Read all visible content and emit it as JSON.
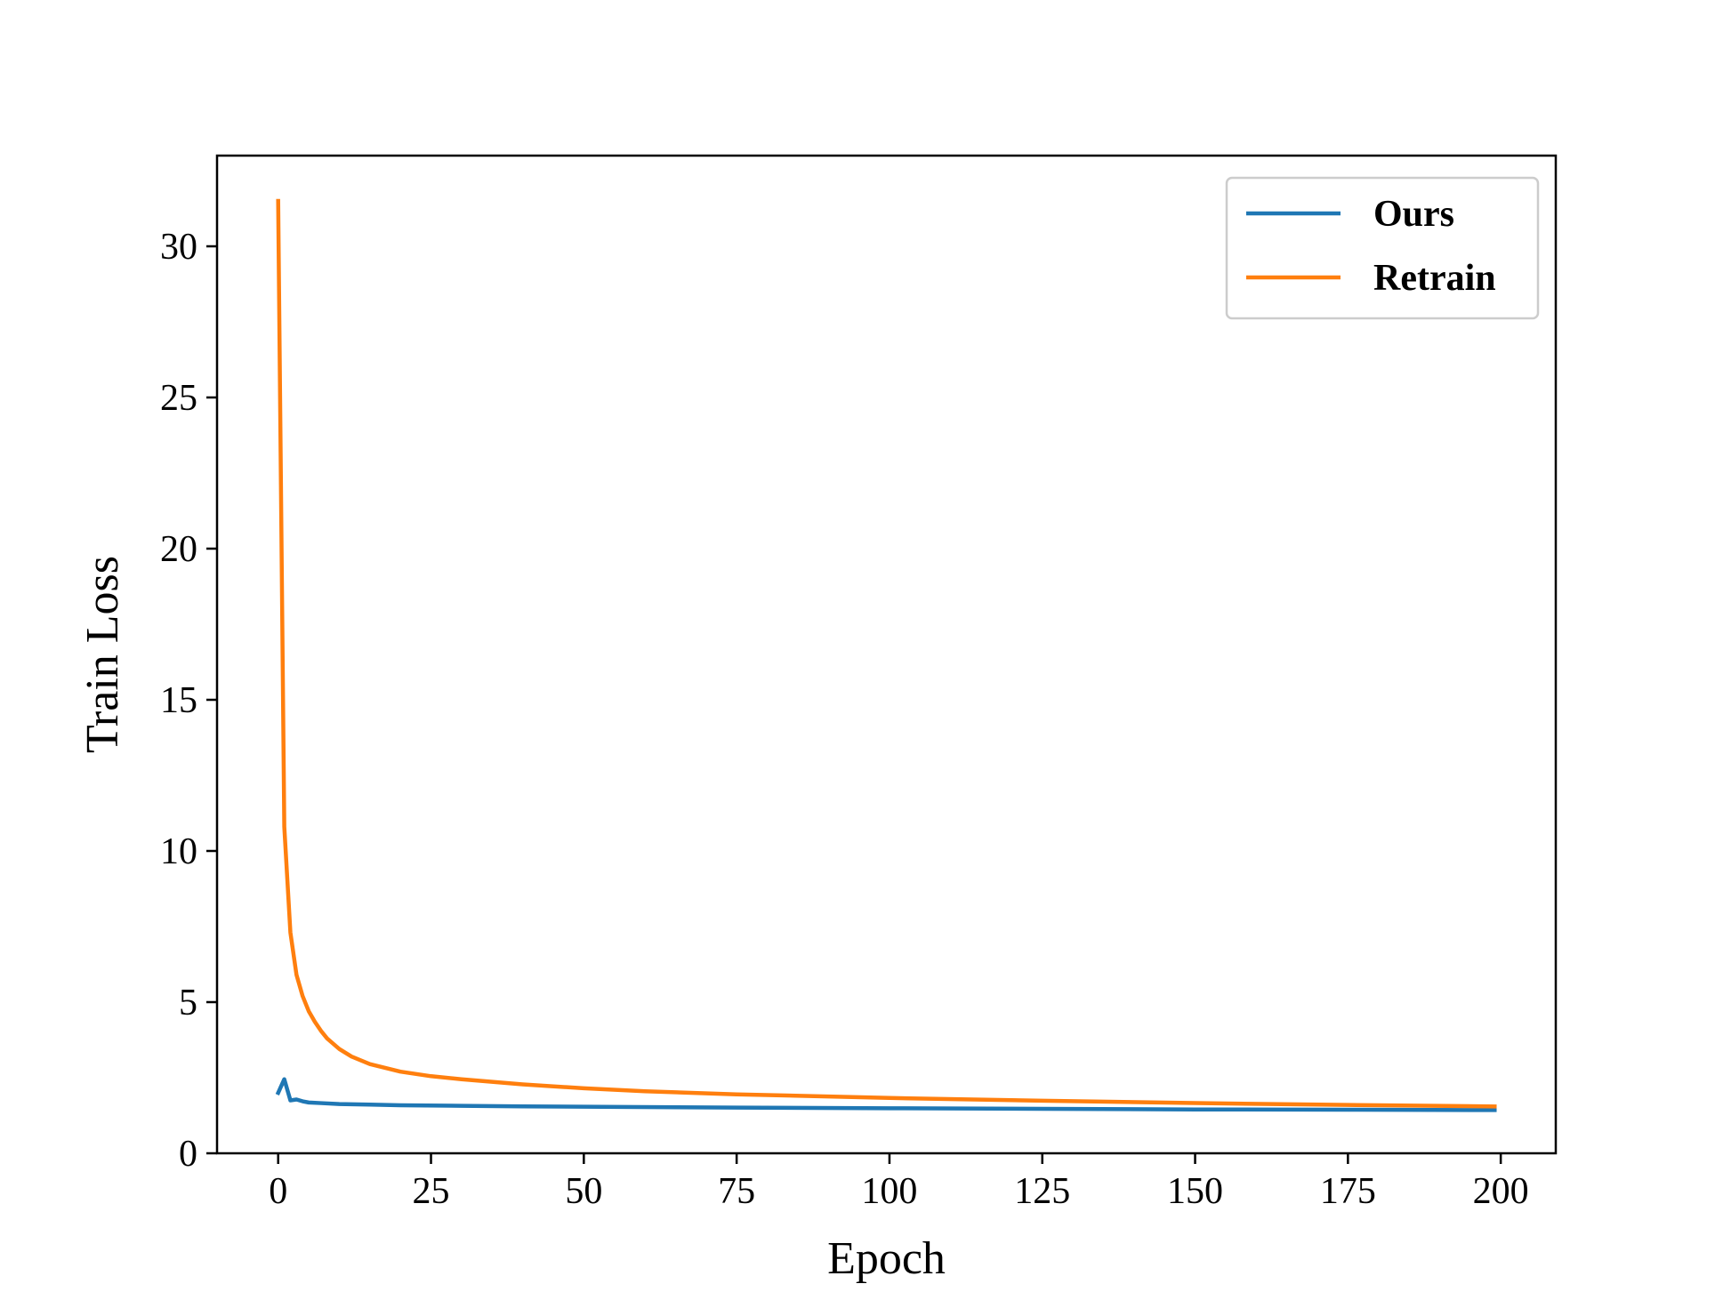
{
  "chart_data": {
    "type": "line",
    "title": "",
    "xlabel": "Epoch",
    "ylabel": "Train Loss",
    "xlim": [
      -10,
      209
    ],
    "ylim": [
      0,
      33
    ],
    "xticks": [
      0,
      25,
      50,
      75,
      100,
      125,
      150,
      175,
      200
    ],
    "yticks": [
      0,
      5,
      10,
      15,
      20,
      25,
      30
    ],
    "grid": false,
    "legend_position": "top-right",
    "series": [
      {
        "name": "Ours",
        "color": "#1f77b4",
        "x": [
          0,
          1,
          2,
          3,
          4,
          5,
          7,
          10,
          15,
          20,
          30,
          40,
          50,
          75,
          100,
          125,
          150,
          175,
          199
        ],
        "y": [
          2.0,
          2.45,
          1.75,
          1.78,
          1.72,
          1.68,
          1.66,
          1.63,
          1.61,
          1.59,
          1.57,
          1.55,
          1.54,
          1.51,
          1.49,
          1.47,
          1.45,
          1.44,
          1.43
        ]
      },
      {
        "name": "Retrain",
        "color": "#ff7f0e",
        "x": [
          0,
          1,
          2,
          3,
          4,
          5,
          6,
          7,
          8,
          10,
          12,
          15,
          20,
          25,
          30,
          40,
          50,
          60,
          75,
          100,
          125,
          150,
          175,
          199
        ],
        "y": [
          31.5,
          10.8,
          7.3,
          5.9,
          5.2,
          4.7,
          4.35,
          4.05,
          3.8,
          3.45,
          3.2,
          2.95,
          2.7,
          2.55,
          2.45,
          2.28,
          2.15,
          2.05,
          1.95,
          1.83,
          1.74,
          1.66,
          1.6,
          1.55
        ]
      }
    ]
  }
}
